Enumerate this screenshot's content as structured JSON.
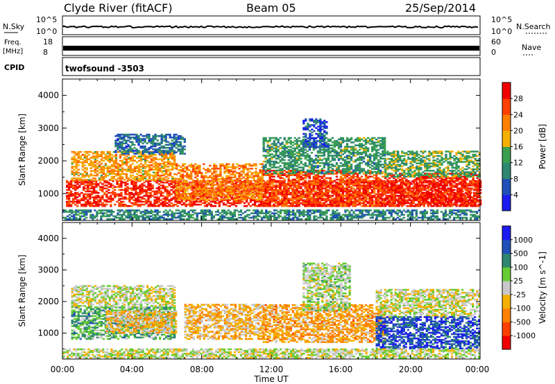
{
  "header": {
    "station": "Clyde River (fitACF)",
    "beam": "Beam 05",
    "date": "25/Sep/2014"
  },
  "nsky_panel": {
    "left_label": "N.Sky",
    "right_label": "N.Search",
    "left_ticks": [
      "10^5",
      "10^0"
    ],
    "right_ticks": [
      "10^5",
      "10^0"
    ]
  },
  "freq_panel": {
    "left_label_line1": "Freq.",
    "left_label_line2": "[MHz]",
    "left_ticks": [
      "18",
      "8"
    ],
    "right_label": "Nave",
    "right_ticks": [
      "60",
      "0"
    ]
  },
  "cpid_panel": {
    "label": "CPID",
    "value": "twofsound  -3503"
  },
  "x_axis": {
    "label": "Time UT",
    "tick_labels": [
      "00:00",
      "04:00",
      "08:00",
      "12:00",
      "16:00",
      "20:00",
      "00:00"
    ]
  },
  "chart_data": [
    {
      "type": "heatmap",
      "title": "",
      "ylabel": "Slant Range [km]",
      "yticks": [
        "1000",
        "2000",
        "3000",
        "4000"
      ],
      "ylim": [
        180,
        4500
      ],
      "xlim": [
        0,
        24
      ],
      "colorbar": {
        "label": "Power [dB]",
        "tick_labels": [
          "4",
          "8",
          "12",
          "16",
          "20",
          "24",
          "28"
        ],
        "range": [
          0,
          32
        ],
        "colors": [
          "#1c1cf0",
          "#2050b8",
          "#2e8870",
          "#3aa050",
          "#f4b000",
          "#ff8000",
          "#ff4000",
          "#f00000"
        ]
      },
      "bands": [
        {
          "start": 0.2,
          "end": 24,
          "low": 600,
          "high": 1400,
          "level": 28
        },
        {
          "start": 0.5,
          "end": 6.5,
          "low": 1400,
          "high": 2300,
          "level": 20
        },
        {
          "start": 3.0,
          "end": 7.0,
          "low": 2200,
          "high": 2800,
          "level": 8
        },
        {
          "start": 6.5,
          "end": 11.5,
          "low": 800,
          "high": 1900,
          "level": 22
        },
        {
          "start": 11.5,
          "end": 18.5,
          "low": 600,
          "high": 1700,
          "level": 26
        },
        {
          "start": 11.5,
          "end": 18.5,
          "low": 1600,
          "high": 2700,
          "level": 12
        },
        {
          "start": 13.8,
          "end": 15.2,
          "low": 2400,
          "high": 3300,
          "level": 6
        },
        {
          "start": 18.5,
          "end": 24,
          "low": 600,
          "high": 1600,
          "level": 28
        },
        {
          "start": 18.5,
          "end": 24,
          "low": 1500,
          "high": 2300,
          "level": 14
        },
        {
          "start": 0,
          "end": 24,
          "low": 200,
          "high": 500,
          "level": 10
        }
      ]
    },
    {
      "type": "heatmap",
      "title": "",
      "ylabel": "Slant Range [km]",
      "yticks": [
        "1000",
        "2000",
        "3000",
        "4000"
      ],
      "ylim": [
        180,
        4500
      ],
      "xlim": [
        0,
        24
      ],
      "colorbar": {
        "label": "Velocity [m s^-1]",
        "tick_labels": [
          "-1000",
          "-500",
          "-100",
          "-25",
          "25",
          "100",
          "500",
          "1000"
        ],
        "range": [
          -1000,
          1000
        ],
        "colors": [
          "#f00000",
          "#ff4000",
          "#ff8000",
          "#f4b000",
          "#c8c8c8",
          "#66cc33",
          "#2e8870",
          "#2050b8",
          "#1c1cf0"
        ]
      },
      "bands": [
        {
          "start": 0.5,
          "end": 6.5,
          "low": 1800,
          "high": 2500,
          "level": 0
        },
        {
          "start": 0.5,
          "end": 6.5,
          "low": 800,
          "high": 1800,
          "level": 300
        },
        {
          "start": 2.5,
          "end": 6.5,
          "low": 1000,
          "high": 1700,
          "level": -200
        },
        {
          "start": 7.0,
          "end": 11.5,
          "low": 800,
          "high": 1900,
          "level": -200
        },
        {
          "start": 11.5,
          "end": 18.5,
          "low": 700,
          "high": 1900,
          "level": -300
        },
        {
          "start": 13.8,
          "end": 16.5,
          "low": 1700,
          "high": 3200,
          "level": 90
        },
        {
          "start": 18.0,
          "end": 24,
          "low": 1500,
          "high": 2400,
          "level": 0
        },
        {
          "start": 18.0,
          "end": 24,
          "low": 500,
          "high": 1500,
          "level": 700
        },
        {
          "start": 0,
          "end": 24,
          "low": 200,
          "high": 500,
          "level": 40
        }
      ]
    }
  ]
}
